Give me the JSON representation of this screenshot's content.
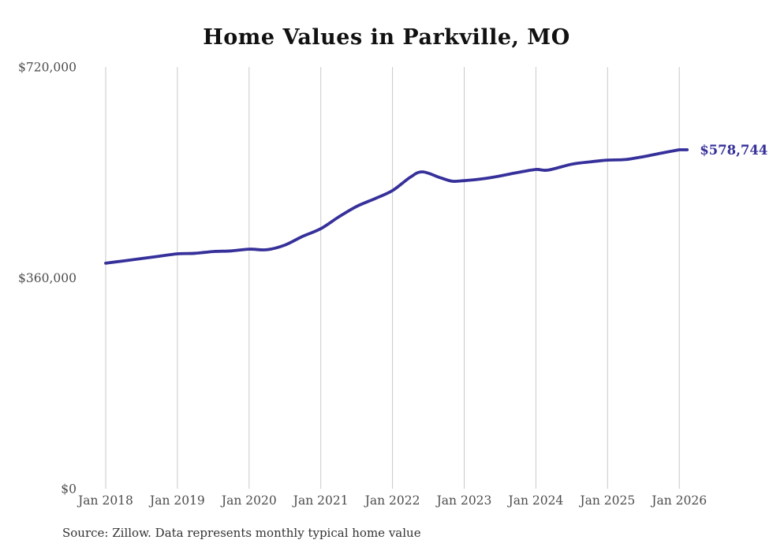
{
  "page": {
    "background": "#ffffff"
  },
  "chart_data": {
    "type": "line",
    "title": "Home Values in Parkville, MO",
    "source_note": "Source: Zillow. Data represents monthly typical home value",
    "end_label": "$578,744",
    "line_color": "#36309a",
    "gridline_color": "#c9c9c9",
    "axis_label_color": "#4d4d4d",
    "grid": "vertical",
    "legend": "none",
    "ylim": [
      0,
      720000
    ],
    "y_ticks": [
      {
        "value": 0,
        "label": "$0"
      },
      {
        "value": 360000,
        "label": "$360,000"
      },
      {
        "value": 720000,
        "label": "$720,000"
      }
    ],
    "x_ticks": [
      "Jan 2018",
      "Jan 2019",
      "Jan 2020",
      "Jan 2021",
      "Jan 2022",
      "Jan 2023",
      "Jan 2024",
      "Jan 2025",
      "Jan 2026"
    ],
    "series": [
      {
        "name": "Monthly typical home value",
        "points": [
          [
            "2018-01",
            385000
          ],
          [
            "2018-04",
            389000
          ],
          [
            "2018-07",
            393000
          ],
          [
            "2018-10",
            397000
          ],
          [
            "2019-01",
            401000
          ],
          [
            "2019-04",
            402000
          ],
          [
            "2019-07",
            405000
          ],
          [
            "2019-10",
            406000
          ],
          [
            "2020-01",
            409000
          ],
          [
            "2020-04",
            408000
          ],
          [
            "2020-07",
            416000
          ],
          [
            "2020-10",
            431000
          ],
          [
            "2021-01",
            444000
          ],
          [
            "2021-04",
            464000
          ],
          [
            "2021-07",
            482000
          ],
          [
            "2021-10",
            495000
          ],
          [
            "2022-01",
            509000
          ],
          [
            "2022-04",
            532000
          ],
          [
            "2022-06",
            541000
          ],
          [
            "2022-09",
            531000
          ],
          [
            "2022-11",
            525000
          ],
          [
            "2023-01",
            526000
          ],
          [
            "2023-04",
            529000
          ],
          [
            "2023-07",
            534000
          ],
          [
            "2023-10",
            540000
          ],
          [
            "2024-01",
            545000
          ],
          [
            "2024-03",
            544000
          ],
          [
            "2024-07",
            554000
          ],
          [
            "2024-10",
            558000
          ],
          [
            "2025-01",
            561000
          ],
          [
            "2025-04",
            562000
          ],
          [
            "2025-07",
            567000
          ],
          [
            "2025-10",
            573000
          ],
          [
            "2026-01",
            578744
          ]
        ]
      }
    ]
  }
}
